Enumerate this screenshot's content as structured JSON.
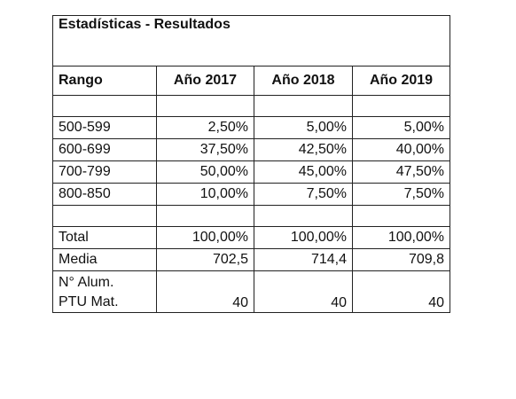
{
  "table": {
    "title": "Estadísticas - Resultados",
    "headers": [
      "Rango",
      "Año 2017",
      "Año 2018",
      "Año 2019"
    ],
    "ranges": [
      {
        "label": "500-599",
        "values": [
          "2,50%",
          "5,00%",
          "5,00%"
        ]
      },
      {
        "label": "600-699",
        "values": [
          "37,50%",
          "42,50%",
          "40,00%"
        ]
      },
      {
        "label": "700-799",
        "values": [
          "50,00%",
          "45,00%",
          "47,50%"
        ]
      },
      {
        "label": "800-850",
        "values": [
          "10,00%",
          "7,50%",
          "7,50%"
        ]
      }
    ],
    "total": {
      "label": "Total",
      "values": [
        "100,00%",
        "100,00%",
        "100,00%"
      ]
    },
    "media": {
      "label": "Media",
      "values": [
        "702,5",
        "714,4",
        "709,8"
      ]
    },
    "alumnos": {
      "label_line1": "N° Alum.",
      "label_line2": "PTU Mat.",
      "values": [
        "40",
        "40",
        "40"
      ]
    }
  }
}
